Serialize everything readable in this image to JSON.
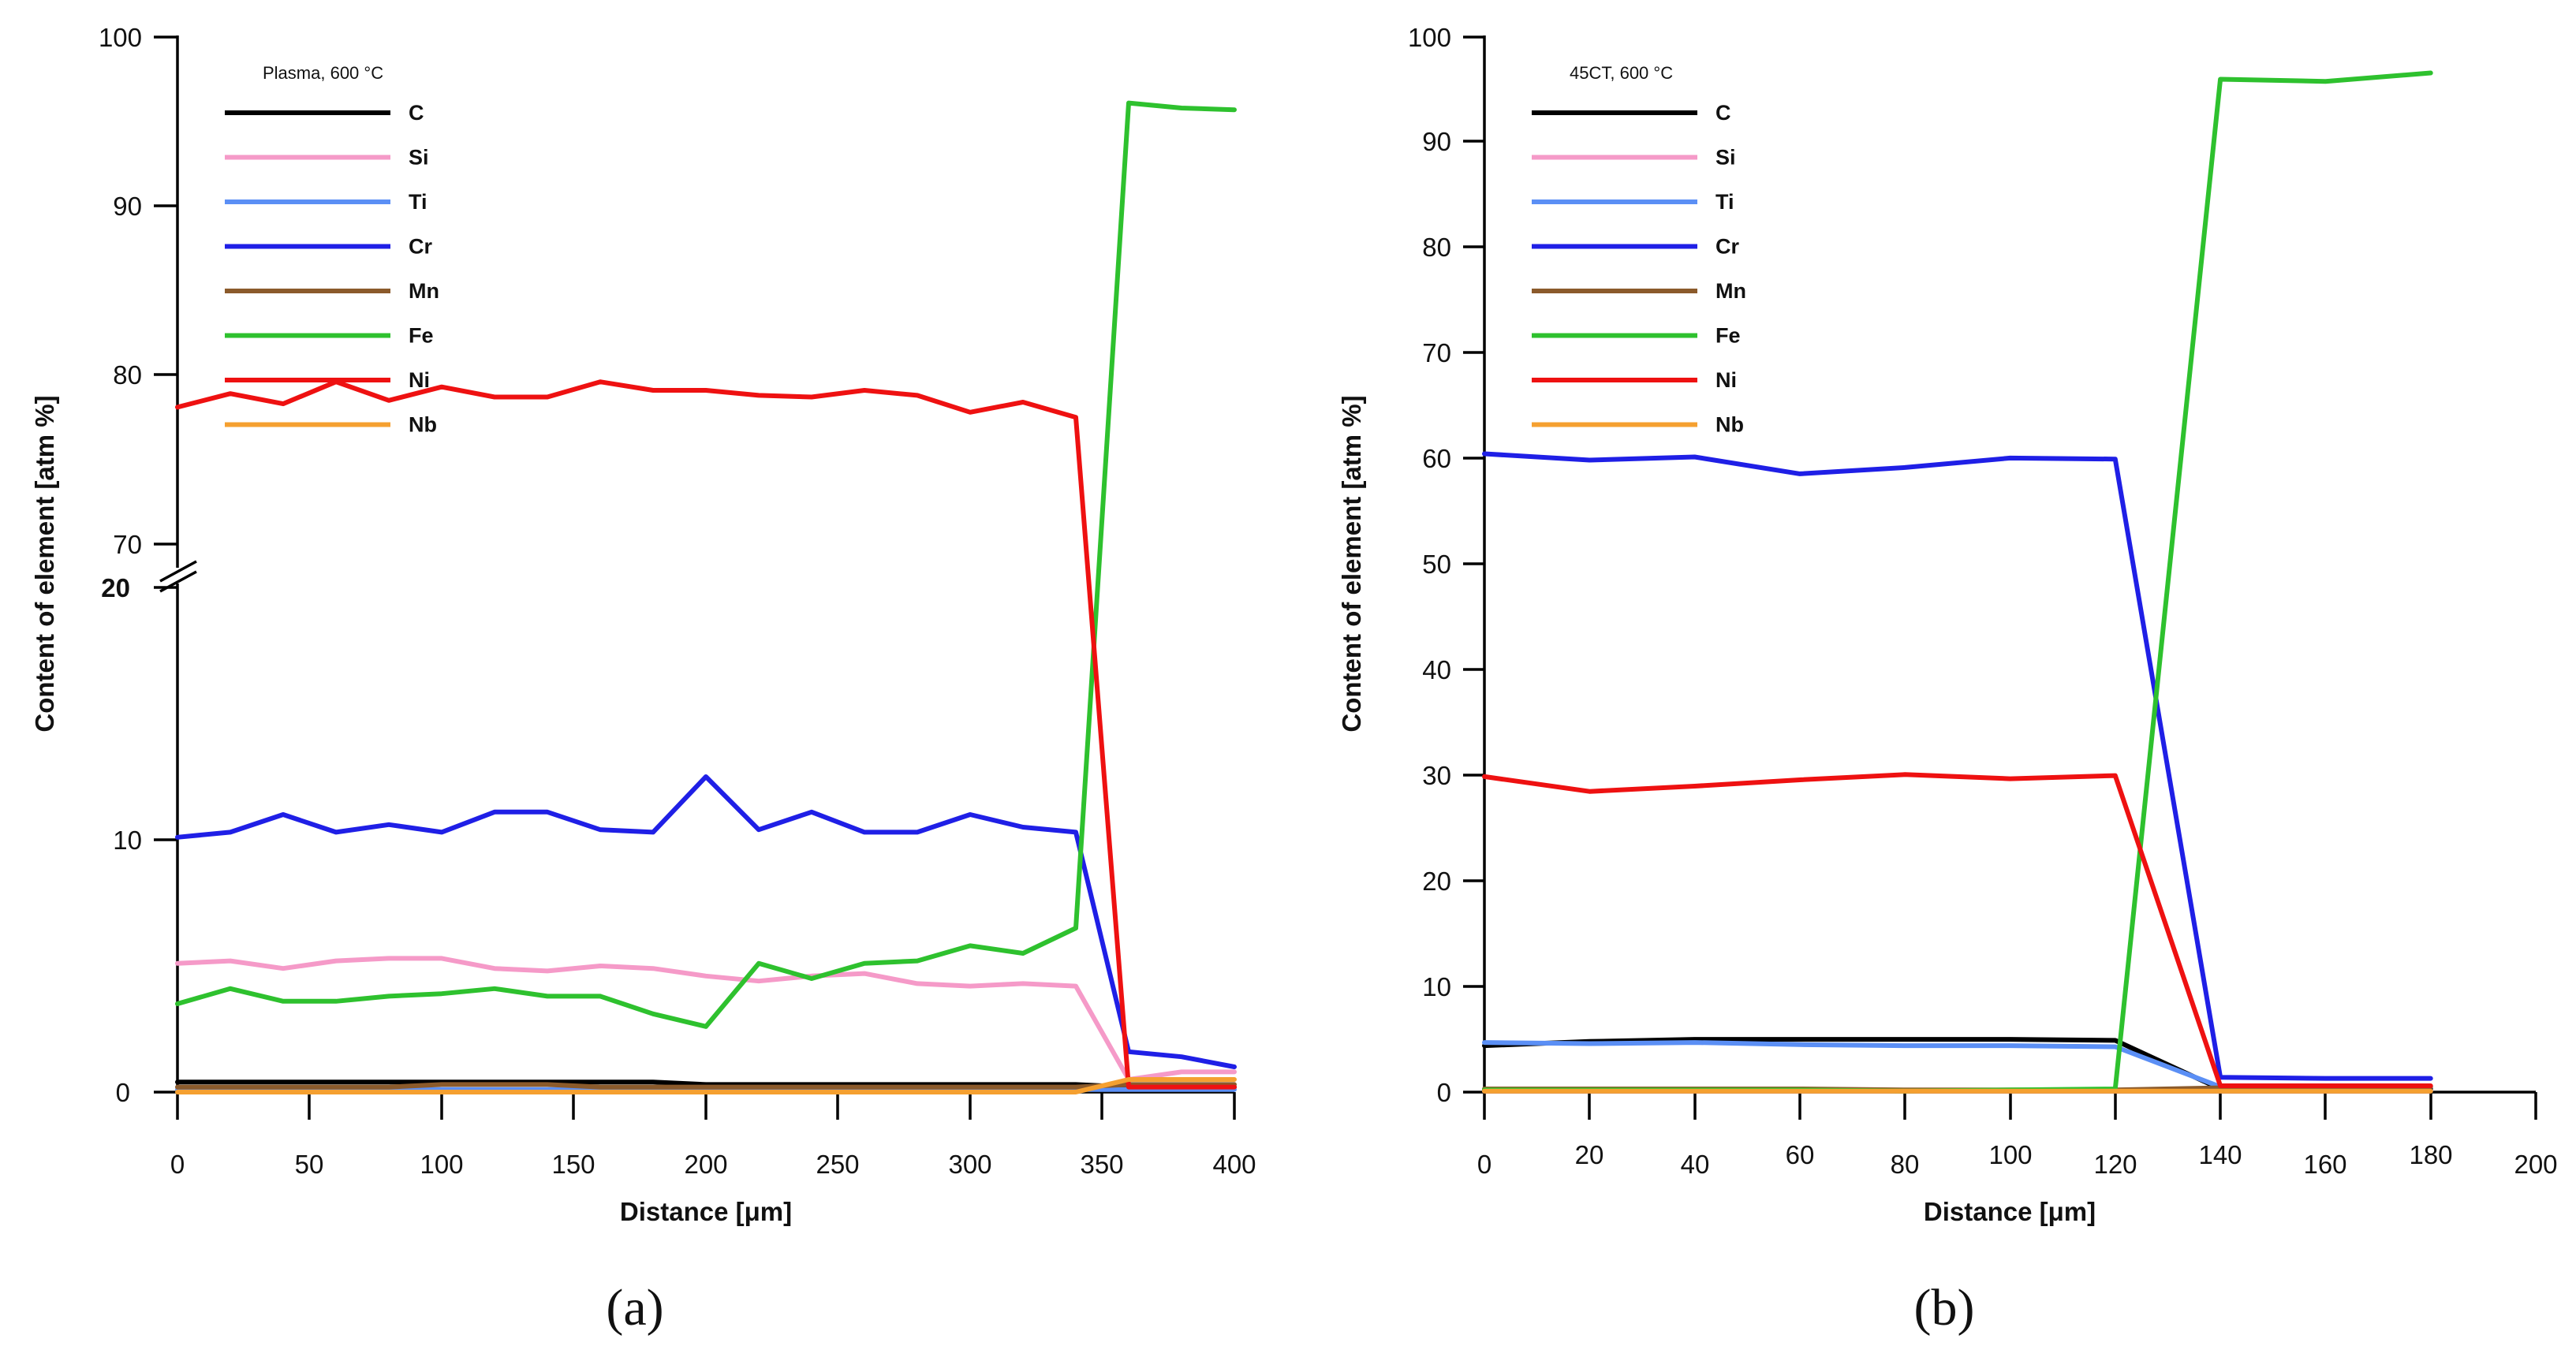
{
  "chart_data": [
    {
      "panel": "a",
      "caption": "(a)",
      "type": "line",
      "title": "Plasma, 600 °C",
      "xlabel": "Distance [μm]",
      "ylabel": "Content of element [atm %]",
      "xlim": [
        0,
        400
      ],
      "xticks": [
        "0",
        "50",
        "100",
        "150",
        "200",
        "250",
        "300",
        "350",
        "400"
      ],
      "yaxis_break": {
        "lower": [
          0,
          20
        ],
        "upper": [
          70,
          100
        ]
      },
      "yticks_lower": [
        "0",
        "10",
        "20"
      ],
      "yticks_upper": [
        "70",
        "80",
        "90",
        "100"
      ],
      "x": [
        0,
        20,
        40,
        60,
        80,
        100,
        120,
        140,
        160,
        180,
        200,
        220,
        240,
        260,
        280,
        300,
        320,
        340,
        360,
        380,
        400
      ],
      "series": [
        {
          "name": "C",
          "color": "#000000",
          "values": [
            0.4,
            0.4,
            0.4,
            0.4,
            0.4,
            0.4,
            0.4,
            0.4,
            0.4,
            0.4,
            0.3,
            0.3,
            0.3,
            0.3,
            0.3,
            0.3,
            0.3,
            0.3,
            0.2,
            0.2,
            0.2
          ]
        },
        {
          "name": "Si",
          "color": "#f59ac8",
          "values": [
            5.1,
            5.2,
            4.9,
            5.2,
            5.3,
            5.3,
            4.9,
            4.8,
            5.0,
            4.9,
            4.6,
            4.4,
            4.6,
            4.7,
            4.3,
            4.2,
            4.3,
            4.2,
            0.5,
            0.8,
            0.8
          ]
        },
        {
          "name": "Ti",
          "color": "#5b8ff5",
          "values": [
            0.1,
            0.1,
            0.1,
            0.1,
            0.1,
            0.1,
            0.1,
            0.1,
            0.1,
            0.1,
            0.1,
            0.1,
            0.1,
            0.1,
            0.1,
            0.1,
            0.1,
            0.1,
            0.1,
            0.1,
            0.1
          ]
        },
        {
          "name": "Cr",
          "color": "#1f1fe6",
          "values": [
            10.1,
            10.3,
            11.0,
            10.3,
            10.6,
            10.3,
            11.1,
            11.1,
            10.4,
            10.3,
            12.5,
            10.4,
            11.1,
            10.3,
            10.3,
            11.0,
            10.5,
            10.3,
            1.6,
            1.4,
            1.0
          ]
        },
        {
          "name": "Mn",
          "color": "#8b5a2b",
          "values": [
            0.2,
            0.2,
            0.2,
            0.2,
            0.2,
            0.3,
            0.3,
            0.3,
            0.2,
            0.2,
            0.2,
            0.2,
            0.2,
            0.2,
            0.2,
            0.2,
            0.2,
            0.2,
            0.3,
            0.3,
            0.3
          ]
        },
        {
          "name": "Fe",
          "color": "#2ec12e",
          "values": [
            3.5,
            4.1,
            3.6,
            3.6,
            3.8,
            3.9,
            4.1,
            3.8,
            3.8,
            3.1,
            2.6,
            5.1,
            4.5,
            5.1,
            5.2,
            5.8,
            5.5,
            6.5,
            96.1,
            95.8,
            95.7
          ]
        },
        {
          "name": "Ni",
          "color": "#ee1111",
          "values": [
            78.1,
            78.9,
            78.3,
            79.6,
            78.5,
            79.3,
            78.7,
            78.7,
            79.6,
            79.1,
            79.1,
            78.8,
            78.7,
            79.1,
            78.8,
            77.8,
            78.4,
            77.5,
            0.2,
            0.2,
            0.2
          ]
        },
        {
          "name": "Nb",
          "color": "#f5a030",
          "values": [
            0.0,
            0.0,
            0.0,
            0.0,
            0.0,
            0.0,
            0.0,
            0.0,
            0.0,
            0.0,
            0.0,
            0.0,
            0.0,
            0.0,
            0.0,
            0.0,
            0.0,
            0.0,
            0.5,
            0.5,
            0.5
          ]
        }
      ]
    },
    {
      "panel": "b",
      "caption": "(b)",
      "type": "line",
      "title": "45CT, 600 °C",
      "xlabel": "Distance [μm]",
      "ylabel": "Content of element [atm %]",
      "xlim": [
        0,
        200
      ],
      "ylim": [
        0,
        100
      ],
      "xticks": [
        "0",
        "20",
        "40",
        "60",
        "80",
        "100",
        "120",
        "140",
        "160",
        "180",
        "200"
      ],
      "yticks": [
        "0",
        "10",
        "20",
        "30",
        "40",
        "50",
        "60",
        "70",
        "80",
        "90",
        "100"
      ],
      "x": [
        0,
        20,
        40,
        60,
        80,
        100,
        120,
        140,
        160,
        180
      ],
      "series": [
        {
          "name": "C",
          "color": "#000000",
          "values": [
            4.4,
            4.8,
            5.0,
            5.0,
            5.0,
            5.0,
            4.9,
            0.3,
            0.3,
            0.3
          ]
        },
        {
          "name": "Si",
          "color": "#f59ac8",
          "values": [
            0.1,
            0.1,
            0.1,
            0.1,
            0.1,
            0.1,
            0.1,
            0.1,
            0.1,
            0.1
          ]
        },
        {
          "name": "Ti",
          "color": "#5b8ff5",
          "values": [
            4.7,
            4.6,
            4.7,
            4.5,
            4.4,
            4.4,
            4.3,
            0.5,
            0.5,
            0.5
          ]
        },
        {
          "name": "Cr",
          "color": "#1f1fe6",
          "values": [
            60.5,
            59.9,
            60.2,
            58.6,
            59.2,
            60.1,
            60.0,
            1.4,
            1.3,
            1.3
          ]
        },
        {
          "name": "Mn",
          "color": "#8b5a2b",
          "values": [
            0.3,
            0.3,
            0.3,
            0.3,
            0.2,
            0.2,
            0.2,
            0.4,
            0.5,
            0.5
          ]
        },
        {
          "name": "Fe",
          "color": "#2ec12e",
          "values": [
            0.2,
            0.2,
            0.2,
            0.2,
            0.1,
            0.2,
            0.3,
            96.0,
            95.8,
            96.6
          ]
        },
        {
          "name": "Ni",
          "color": "#ee1111",
          "values": [
            29.9,
            28.5,
            29.0,
            29.6,
            30.1,
            29.7,
            30.0,
            0.6,
            0.6,
            0.6
          ]
        },
        {
          "name": "Nb",
          "color": "#f5a030",
          "values": [
            0.1,
            0.1,
            0.1,
            0.1,
            0.1,
            0.1,
            0.1,
            0.1,
            0.1,
            0.1
          ]
        }
      ]
    }
  ]
}
